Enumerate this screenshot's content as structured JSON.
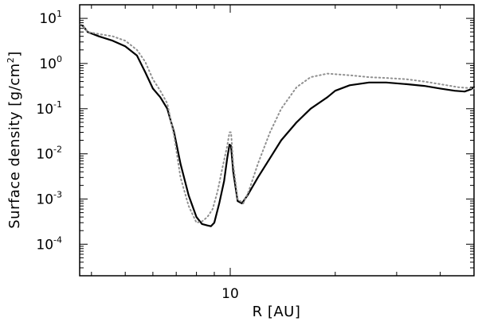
{
  "chart_data": {
    "type": "line",
    "title": "",
    "xlabel": "R [AU]",
    "ylabel_main": "Surface density [g/cm",
    "ylabel_sup": "2",
    "ylabel_end": "]",
    "xscale": "log",
    "yscale": "log",
    "xlim": [
      3.7,
      50
    ],
    "ylim": [
      2e-05,
      20
    ],
    "grid": false,
    "x_tick_labels": [
      {
        "value": 10,
        "label": "10"
      }
    ],
    "x_minor_ticks": [
      4,
      5,
      6,
      7,
      8,
      9,
      20,
      30,
      40,
      50
    ],
    "y_tick_labels": [
      {
        "value": 10,
        "base": "10",
        "exp": "1"
      },
      {
        "value": 1,
        "base": "10",
        "exp": "0"
      },
      {
        "value": 0.1,
        "base": "10",
        "exp": "-1"
      },
      {
        "value": 0.01,
        "base": "10",
        "exp": "-2"
      },
      {
        "value": 0.001,
        "base": "10",
        "exp": "-3"
      },
      {
        "value": 0.0001,
        "base": "10",
        "exp": "-4"
      }
    ],
    "series": [
      {
        "style": "solid",
        "color": "#000000",
        "x": [
          3.72,
          3.78,
          3.9,
          4.2,
          4.6,
          5.0,
          5.4,
          5.7,
          6.0,
          6.3,
          6.6,
          6.9,
          7.2,
          7.6,
          8.0,
          8.3,
          8.6,
          8.8,
          9.0,
          9.3,
          9.6,
          9.8,
          9.95,
          10.05,
          10.2,
          10.5,
          10.8,
          11.2,
          12,
          13,
          14,
          15.5,
          17,
          19,
          20,
          22,
          25,
          28,
          32,
          36,
          40,
          44,
          47,
          49,
          50
        ],
        "y": [
          7.2,
          6.8,
          5.0,
          4.0,
          3.2,
          2.4,
          1.5,
          0.65,
          0.28,
          0.18,
          0.1,
          0.03,
          0.006,
          0.0012,
          0.0004,
          0.00028,
          0.00026,
          0.00025,
          0.0003,
          0.0008,
          0.0025,
          0.008,
          0.016,
          0.015,
          0.004,
          0.0009,
          0.0008,
          0.0012,
          0.003,
          0.008,
          0.02,
          0.05,
          0.1,
          0.18,
          0.25,
          0.33,
          0.38,
          0.38,
          0.35,
          0.32,
          0.28,
          0.25,
          0.24,
          0.27,
          0.3
        ]
      },
      {
        "style": "dotted",
        "color": "#909090",
        "x": [
          3.72,
          3.78,
          3.9,
          4.2,
          4.6,
          5.0,
          5.4,
          5.7,
          6.0,
          6.3,
          6.6,
          6.9,
          7.2,
          7.6,
          8.0,
          8.3,
          8.6,
          8.9,
          9.2,
          9.5,
          9.8,
          9.95,
          10.05,
          10.2,
          10.5,
          10.9,
          11.3,
          12,
          13,
          14,
          15.5,
          17,
          19,
          22,
          25,
          28,
          32,
          36,
          40,
          45,
          50
        ],
        "y": [
          7.2,
          6.8,
          5.0,
          4.5,
          4.0,
          3.2,
          2.0,
          1.1,
          0.45,
          0.25,
          0.13,
          0.025,
          0.003,
          0.0007,
          0.0003,
          0.00032,
          0.0004,
          0.0006,
          0.0015,
          0.005,
          0.015,
          0.03,
          0.03,
          0.006,
          0.001,
          0.0008,
          0.0015,
          0.006,
          0.03,
          0.1,
          0.3,
          0.5,
          0.6,
          0.55,
          0.5,
          0.48,
          0.45,
          0.4,
          0.35,
          0.3,
          0.28
        ]
      }
    ]
  }
}
